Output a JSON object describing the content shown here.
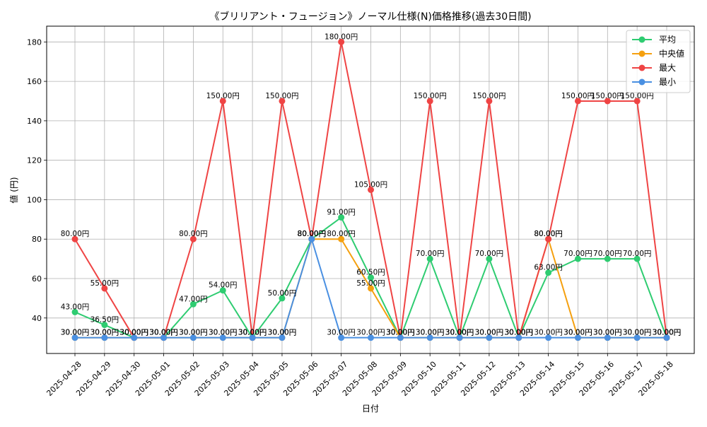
{
  "chart_data": {
    "type": "line",
    "title": "《ブリリアント・フュージョン》ノーマル仕様(N)価格推移(過去30日間)",
    "xlabel": "日付",
    "ylabel": "値 (円)",
    "ylim": [
      22,
      188
    ],
    "yticks": [
      40,
      60,
      80,
      100,
      120,
      140,
      160,
      180
    ],
    "grid": true,
    "legend_position": "top-right",
    "value_label_suffix": "円",
    "categories": [
      "2025-04-28",
      "2025-04-29",
      "2025-04-30",
      "2025-05-01",
      "2025-05-02",
      "2025-05-03",
      "2025-05-04",
      "2025-05-05",
      "2025-05-06",
      "2025-05-07",
      "2025-05-08",
      "2025-05-09",
      "2025-05-10",
      "2025-05-11",
      "2025-05-12",
      "2025-05-13",
      "2025-05-14",
      "2025-05-15",
      "2025-05-16",
      "2025-05-17",
      "2025-05-18"
    ],
    "series": [
      {
        "name": "平均",
        "color": "#2ecc71",
        "values": [
          43,
          36.5,
          30,
          30,
          47,
          54,
          30,
          50,
          80,
          91,
          60.5,
          30,
          70,
          30,
          70,
          30,
          63,
          70,
          70,
          70,
          30
        ]
      },
      {
        "name": "中央値",
        "color": "#f5a00f",
        "values": [
          30,
          30,
          30,
          30,
          30,
          30,
          30,
          30,
          80,
          80,
          55,
          30,
          30,
          30,
          30,
          30,
          80,
          30,
          30,
          30,
          30
        ]
      },
      {
        "name": "最大",
        "color": "#ef4444",
        "values": [
          80,
          55,
          30,
          30,
          80,
          150,
          30,
          150,
          80,
          180,
          105,
          30,
          150,
          30,
          150,
          30,
          80,
          150,
          150,
          150,
          30
        ]
      },
      {
        "name": "最小",
        "color": "#4a90e2",
        "values": [
          30,
          30,
          30,
          30,
          30,
          30,
          30,
          30,
          80,
          30,
          30,
          30,
          30,
          30,
          30,
          30,
          30,
          30,
          30,
          30,
          30
        ]
      }
    ]
  }
}
